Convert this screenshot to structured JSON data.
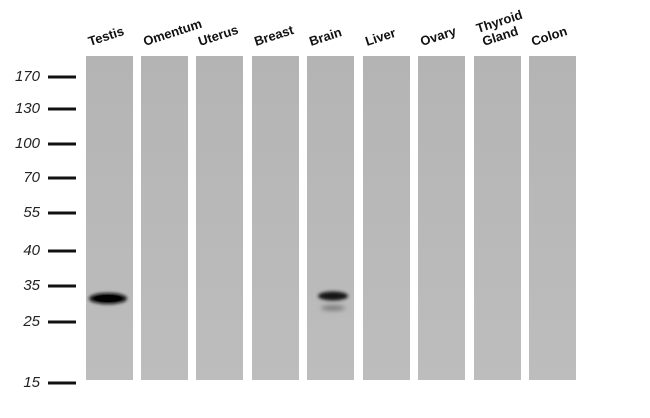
{
  "lanes": [
    [
      "Testis"
    ],
    [
      "Omentum"
    ],
    [
      "Uterus"
    ],
    [
      "Breast"
    ],
    [
      "Brain"
    ],
    [
      "Liver"
    ],
    [
      "Ovary"
    ],
    [
      "Thyroid",
      "Gland"
    ],
    [
      "Colon"
    ]
  ],
  "markers": [
    "170",
    "130",
    "100",
    "70",
    "55",
    "40",
    "35",
    "25",
    "15"
  ]
}
